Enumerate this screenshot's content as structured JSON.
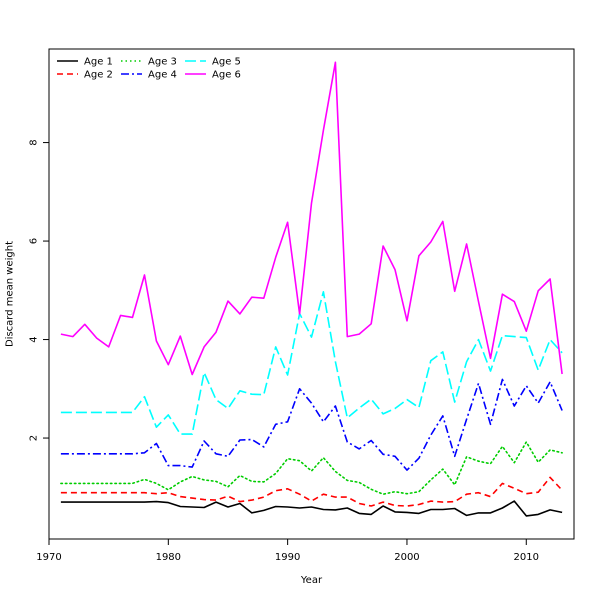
{
  "chart_data": {
    "type": "line",
    "title": "",
    "xlabel": "Year",
    "ylabel": "Discard mean weight",
    "xlim": [
      1970,
      2014
    ],
    "ylim": [
      -0.05,
      9.9
    ],
    "xticks": [
      1970,
      1980,
      1990,
      2000,
      2010
    ],
    "yticks": [
      2,
      4,
      6,
      8
    ],
    "legend_position": "top-left",
    "x": [
      1971,
      1972,
      1973,
      1974,
      1975,
      1976,
      1977,
      1978,
      1979,
      1980,
      1981,
      1982,
      1983,
      1984,
      1985,
      1986,
      1987,
      1988,
      1989,
      1990,
      1991,
      1992,
      1993,
      1994,
      1995,
      1996,
      1997,
      1998,
      1999,
      2000,
      2001,
      2002,
      2003,
      2004,
      2005,
      2006,
      2007,
      2008,
      2009,
      2010,
      2011,
      2012,
      2013
    ],
    "series": [
      {
        "name": "Age 1",
        "color": "#000000",
        "dash": "solid",
        "values": [
          0.7,
          0.7,
          0.7,
          0.7,
          0.7,
          0.7,
          0.7,
          0.7,
          0.71,
          0.69,
          0.61,
          0.6,
          0.59,
          0.7,
          0.6,
          0.67,
          0.48,
          0.53,
          0.61,
          0.6,
          0.58,
          0.6,
          0.55,
          0.54,
          0.58,
          0.47,
          0.45,
          0.62,
          0.5,
          0.49,
          0.47,
          0.55,
          0.55,
          0.57,
          0.43,
          0.48,
          0.48,
          0.58,
          0.72,
          0.42,
          0.45,
          0.54,
          0.49
        ]
      },
      {
        "name": "Age 2",
        "color": "#ff0000",
        "dash": "dashed",
        "values": [
          0.89,
          0.89,
          0.89,
          0.89,
          0.89,
          0.89,
          0.89,
          0.89,
          0.87,
          0.89,
          0.81,
          0.78,
          0.75,
          0.74,
          0.82,
          0.71,
          0.74,
          0.8,
          0.93,
          0.97,
          0.86,
          0.72,
          0.86,
          0.8,
          0.8,
          0.67,
          0.62,
          0.7,
          0.63,
          0.62,
          0.65,
          0.72,
          0.7,
          0.71,
          0.86,
          0.89,
          0.81,
          1.08,
          0.98,
          0.87,
          0.9,
          1.2,
          0.94
        ]
      },
      {
        "name": "Age 3",
        "color": "#00cd00",
        "dash": "dotted",
        "values": [
          1.08,
          1.08,
          1.08,
          1.08,
          1.08,
          1.08,
          1.08,
          1.16,
          1.08,
          0.95,
          1.11,
          1.22,
          1.15,
          1.12,
          1.01,
          1.24,
          1.12,
          1.11,
          1.28,
          1.58,
          1.54,
          1.33,
          1.6,
          1.32,
          1.14,
          1.1,
          0.96,
          0.86,
          0.91,
          0.87,
          0.91,
          1.15,
          1.37,
          1.05,
          1.62,
          1.53,
          1.48,
          1.83,
          1.5,
          1.92,
          1.51,
          1.76,
          1.7
        ]
      },
      {
        "name": "Age 4",
        "color": "#0000ff",
        "dash": "dashdot",
        "values": [
          1.68,
          1.68,
          1.68,
          1.68,
          1.68,
          1.68,
          1.68,
          1.7,
          1.89,
          1.44,
          1.44,
          1.41,
          1.94,
          1.68,
          1.63,
          1.96,
          1.97,
          1.82,
          2.28,
          2.33,
          3.0,
          2.71,
          2.33,
          2.65,
          1.92,
          1.78,
          1.95,
          1.67,
          1.63,
          1.35,
          1.59,
          2.06,
          2.45,
          1.63,
          2.38,
          3.11,
          2.28,
          3.19,
          2.65,
          3.06,
          2.71,
          3.14,
          2.56
        ]
      },
      {
        "name": "Age 5",
        "color": "#00ffff",
        "dash": "longdash",
        "values": [
          2.52,
          2.52,
          2.52,
          2.52,
          2.52,
          2.52,
          2.52,
          2.84,
          2.22,
          2.47,
          2.08,
          2.08,
          3.33,
          2.78,
          2.6,
          2.96,
          2.89,
          2.88,
          3.85,
          3.28,
          4.53,
          4.05,
          4.97,
          3.55,
          2.41,
          2.61,
          2.79,
          2.49,
          2.6,
          2.78,
          2.62,
          3.57,
          3.75,
          2.73,
          3.55,
          4.0,
          3.36,
          4.08,
          4.06,
          4.04,
          3.38,
          4.0,
          3.73
        ]
      },
      {
        "name": "Age 6",
        "color": "#ff00ff",
        "dash": "solid",
        "values": [
          4.11,
          4.06,
          4.31,
          4.03,
          3.85,
          4.49,
          4.45,
          5.31,
          3.97,
          3.49,
          4.07,
          3.29,
          3.85,
          4.15,
          4.78,
          4.52,
          4.86,
          4.84,
          5.67,
          6.38,
          4.52,
          6.77,
          8.25,
          9.63,
          4.06,
          4.11,
          4.32,
          5.9,
          5.42,
          4.38,
          5.7,
          5.98,
          6.4,
          4.98,
          5.94,
          4.77,
          3.62,
          4.92,
          4.77,
          4.17,
          4.99,
          5.23,
          3.3
        ]
      }
    ]
  }
}
